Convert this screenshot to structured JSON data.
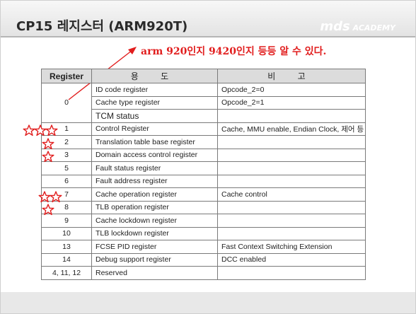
{
  "slide": {
    "title": "CP15 레지스터 (ARM920T)",
    "logo_main": "mds",
    "logo_sub": "ACADEMY",
    "annotation": "arm 920인지 9420인지 등등 알 수 있다.",
    "colors": {
      "annotation": "#e11d1d",
      "header_bg": "#e6e6e6",
      "table_header_bg": "#dcdcdc"
    }
  },
  "table": {
    "headers": [
      "Register",
      "용 도",
      "비 고"
    ],
    "rows": [
      {
        "register": "0",
        "purpose": "ID code register",
        "note": "Opcode_2=0"
      },
      {
        "register": "",
        "purpose": "Cache type register",
        "note": "Opcode_2=1"
      },
      {
        "register": "",
        "purpose": "TCM status",
        "note": ""
      },
      {
        "register": "1",
        "purpose": "Control Register",
        "note": "Cache, MMU enable, Endian Clock, 제어 등",
        "stars": 3
      },
      {
        "register": "2",
        "purpose": "Translation table base register",
        "note": "",
        "stars": 1
      },
      {
        "register": "3",
        "purpose": "Domain access control register",
        "note": "",
        "stars": 1
      },
      {
        "register": "5",
        "purpose": "Fault status register",
        "note": ""
      },
      {
        "register": "6",
        "purpose": "Fault address register",
        "note": ""
      },
      {
        "register": "7",
        "purpose": "Cache operation register",
        "note": "Cache control",
        "stars": 2
      },
      {
        "register": "8",
        "purpose": "TLB operation register",
        "note": "",
        "stars": 1
      },
      {
        "register": "9",
        "purpose": "Cache lockdown register",
        "note": ""
      },
      {
        "register": "10",
        "purpose": "TLB lockdown register",
        "note": ""
      },
      {
        "register": "13",
        "purpose": "FCSE PID register",
        "note": "Fast Context Switching Extension"
      },
      {
        "register": "14",
        "purpose": "Debug support register",
        "note": "DCC enabled"
      },
      {
        "register": "4, 11, 12",
        "purpose": "Reserved",
        "note": ""
      }
    ]
  }
}
